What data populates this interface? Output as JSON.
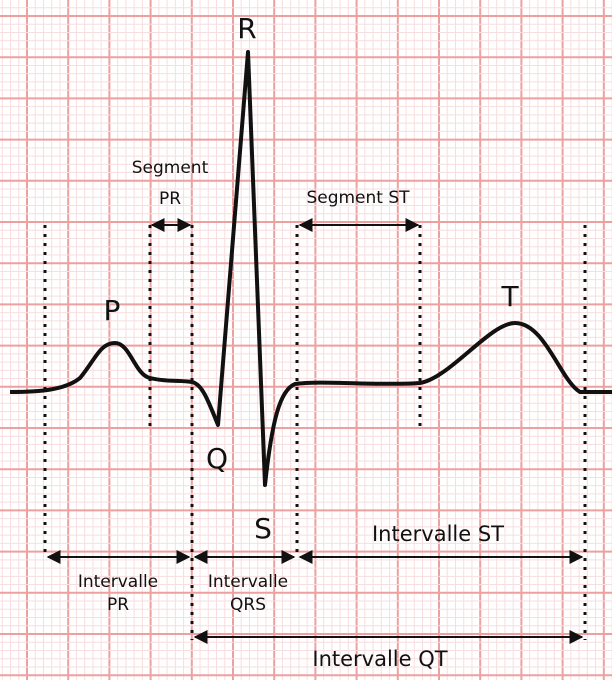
{
  "waves": {
    "p": "P",
    "q": "Q",
    "r": "R",
    "s": "S",
    "t": "T"
  },
  "segments": {
    "pr": [
      "Segment",
      "PR"
    ],
    "st": "Segment ST"
  },
  "intervals": {
    "pr": [
      "Intervalle",
      "PR"
    ],
    "qrs": [
      "Intervalle",
      "QRS"
    ],
    "st": "Intervalle ST",
    "qt": "Intervalle QT"
  }
}
